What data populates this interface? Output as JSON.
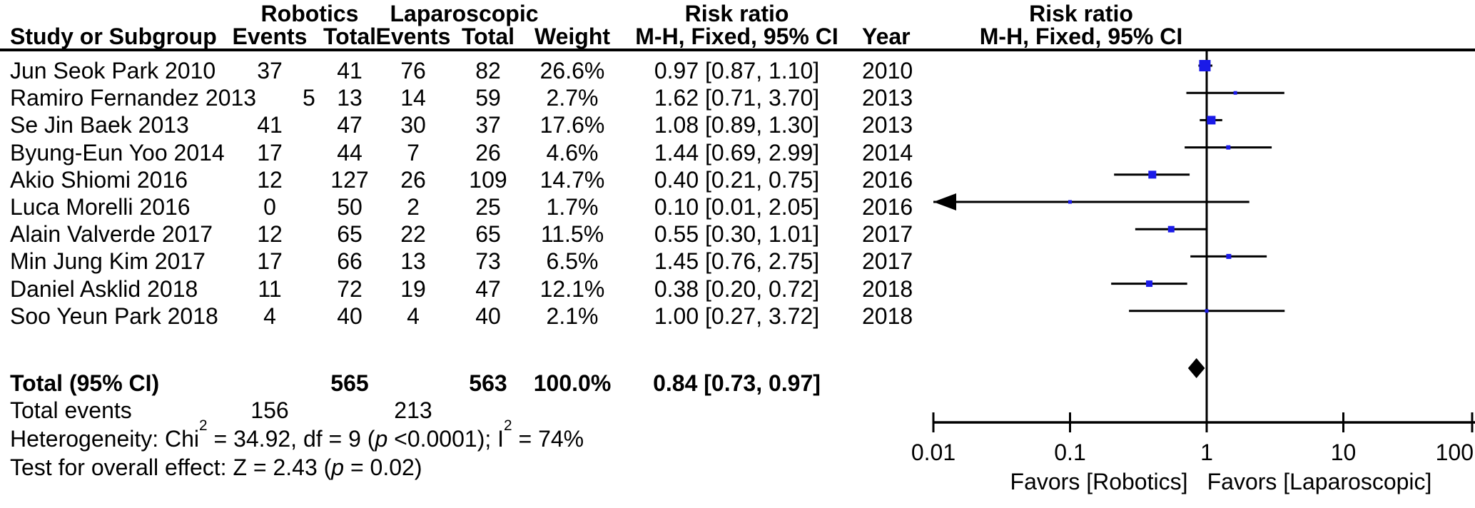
{
  "header": {
    "study": "Study or Subgroup",
    "group_robotics": "Robotics",
    "group_laparoscopic": "Laparoscopic",
    "events": "Events",
    "total": "Total",
    "weight": "Weight",
    "risk_ratio": "Risk ratio",
    "mh_fixed": "M-H, Fixed, 95% CI",
    "year": "Year",
    "risk_ratio_plot": "Risk ratio",
    "mh_fixed_plot": "M-H, Fixed, 95% CI"
  },
  "rows": [
    {
      "study": "Jun Seok Park 2010",
      "re": "37",
      "rt": "41",
      "le": "76",
      "lt": "82",
      "w": "26.6%",
      "rr": "0.97 [0.87, 1.10]",
      "yr": "2010"
    },
    {
      "study": "Ramiro Fernandez 2013",
      "re": "5",
      "rt": "13",
      "le": "14",
      "lt": "59",
      "w": "2.7%",
      "rr": "1.62 [0.71, 3.70]",
      "yr": "2013"
    },
    {
      "study": "Se Jin Baek 2013",
      "re": "41",
      "rt": "47",
      "le": "30",
      "lt": "37",
      "w": "17.6%",
      "rr": "1.08 [0.89, 1.30]",
      "yr": "2013"
    },
    {
      "study": "Byung-Eun Yoo 2014",
      "re": "17",
      "rt": "44",
      "le": "7",
      "lt": "26",
      "w": "4.6%",
      "rr": "1.44 [0.69, 2.99]",
      "yr": "2014"
    },
    {
      "study": "Akio Shiomi 2016",
      "re": "12",
      "rt": "127",
      "le": "26",
      "lt": "109",
      "w": "14.7%",
      "rr": "0.40 [0.21, 0.75]",
      "yr": "2016"
    },
    {
      "study": "Luca Morelli 2016",
      "re": "0",
      "rt": "50",
      "le": "2",
      "lt": "25",
      "w": "1.7%",
      "rr": "0.10 [0.01, 2.05]",
      "yr": "2016"
    },
    {
      "study": "Alain Valverde 2017",
      "re": "12",
      "rt": "65",
      "le": "22",
      "lt": "65",
      "w": "11.5%",
      "rr": "0.55 [0.30, 1.01]",
      "yr": "2017"
    },
    {
      "study": "Min Jung Kim 2017",
      "re": "17",
      "rt": "66",
      "le": "13",
      "lt": "73",
      "w": "6.5%",
      "rr": "1.45 [0.76, 2.75]",
      "yr": "2017"
    },
    {
      "study": "Daniel Asklid 2018",
      "re": "11",
      "rt": "72",
      "le": "19",
      "lt": "47",
      "w": "12.1%",
      "rr": "0.38 [0.20, 0.72]",
      "yr": "2018"
    },
    {
      "study": "Soo Yeun Park 2018",
      "re": "4",
      "rt": "40",
      "le": "4",
      "lt": "40",
      "w": "2.1%",
      "rr": "1.00 [0.27, 3.72]",
      "yr": "2018"
    }
  ],
  "totals": {
    "label": "Total (95% CI)",
    "rt": "565",
    "lt": "563",
    "w": "100.0%",
    "rr": "0.84 [0.73, 0.97]"
  },
  "total_events": {
    "label": "Total events",
    "re": "156",
    "le": "213"
  },
  "stats": {
    "het1": "Heterogeneity: Chi",
    "sup_a": "2",
    "het2": " = 34.92, df = 9 (",
    "p_a": "p",
    "het3": " <0.0001); I",
    "sup_b": "2",
    "het4": " = 74%",
    "test1": "Test for overall effect: Z = 2.43 (",
    "p_b": "p",
    "test2": " = 0.02)"
  },
  "chart_data": {
    "type": "scatter",
    "variant": "forest-plot-meta-analysis",
    "effect_measure": "Risk ratio, M-H, Fixed, 95% CI",
    "x_scale": "log10",
    "xlim": [
      0.01,
      100
    ],
    "x_ticks": [
      "0.01",
      "0.1",
      "1",
      "10",
      "100"
    ],
    "x_tick_values": [
      0.01,
      0.1,
      1,
      10,
      100
    ],
    "marker_color": "#1a1ae8",
    "line_color": "#000000",
    "favors_left": "Favors [Robotics]",
    "favors_right": "Favors [Laparoscopic]",
    "studies": [
      {
        "name": "Jun Seok Park 2010",
        "rr": 0.97,
        "ci_low": 0.87,
        "ci_high": 1.1,
        "weight_pct": 26.6,
        "year": 2010,
        "arrow_left": false
      },
      {
        "name": "Ramiro Fernandez 2013",
        "rr": 1.62,
        "ci_low": 0.71,
        "ci_high": 3.7,
        "weight_pct": 2.7,
        "year": 2013,
        "arrow_left": false
      },
      {
        "name": "Se Jin Baek 2013",
        "rr": 1.08,
        "ci_low": 0.89,
        "ci_high": 1.3,
        "weight_pct": 17.6,
        "year": 2013,
        "arrow_left": false
      },
      {
        "name": "Byung-Eun Yoo 2014",
        "rr": 1.44,
        "ci_low": 0.69,
        "ci_high": 2.99,
        "weight_pct": 4.6,
        "year": 2014,
        "arrow_left": false
      },
      {
        "name": "Akio Shiomi 2016",
        "rr": 0.4,
        "ci_low": 0.21,
        "ci_high": 0.75,
        "weight_pct": 14.7,
        "year": 2016,
        "arrow_left": false
      },
      {
        "name": "Luca Morelli 2016",
        "rr": 0.1,
        "ci_low": 0.01,
        "ci_high": 2.05,
        "weight_pct": 1.7,
        "year": 2016,
        "arrow_left": true
      },
      {
        "name": "Alain Valverde 2017",
        "rr": 0.55,
        "ci_low": 0.3,
        "ci_high": 1.01,
        "weight_pct": 11.5,
        "year": 2017,
        "arrow_left": false
      },
      {
        "name": "Min Jung Kim 2017",
        "rr": 1.45,
        "ci_low": 0.76,
        "ci_high": 2.75,
        "weight_pct": 6.5,
        "year": 2017,
        "arrow_left": false
      },
      {
        "name": "Daniel Asklid 2018",
        "rr": 0.38,
        "ci_low": 0.2,
        "ci_high": 0.72,
        "weight_pct": 12.1,
        "year": 2018,
        "arrow_left": false
      },
      {
        "name": "Soo Yeun Park 2018",
        "rr": 1.0,
        "ci_low": 0.27,
        "ci_high": 3.72,
        "weight_pct": 2.1,
        "year": 2018,
        "arrow_left": false
      }
    ],
    "total": {
      "label": "Total (95% CI)",
      "rr": 0.84,
      "ci_low": 0.73,
      "ci_high": 0.97,
      "weight_pct": 100.0
    },
    "heterogeneity": "Chi2 = 34.92, df = 9 (p <0.0001); I2 = 74%",
    "overall_effect": "Z = 2.43 (p = 0.02)"
  }
}
